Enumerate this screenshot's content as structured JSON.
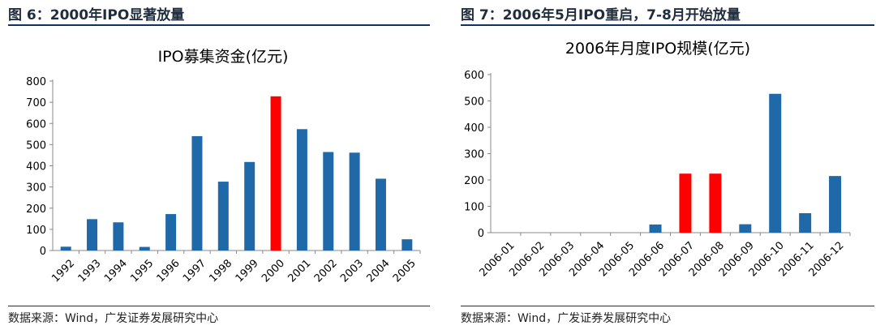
{
  "chart_data": [
    {
      "type": "bar",
      "figure_title": "图 6：2000年IPO显著放量",
      "title": "IPO募集资金(亿元)",
      "xlabel": "",
      "ylabel": "",
      "categories": [
        "1992",
        "1993",
        "1994",
        "1995",
        "1996",
        "1997",
        "1998",
        "1999",
        "2000",
        "2001",
        "2002",
        "2003",
        "2004",
        "2005"
      ],
      "values": [
        18,
        148,
        133,
        17,
        172,
        540,
        325,
        418,
        728,
        573,
        465,
        462,
        339,
        53
      ],
      "highlight": [
        "2000"
      ],
      "ylim": [
        0,
        800
      ],
      "yticks": [
        0,
        100,
        200,
        300,
        400,
        500,
        600,
        700,
        800
      ],
      "grid": false,
      "source": "数据来源：Wind，广发证券发展研究中心",
      "colors": {
        "bar": "#1f69a9",
        "highlight": "#ff0000",
        "title_rule": "#0f3263"
      }
    },
    {
      "type": "bar",
      "figure_title": "图 7：2006年5月IPO重启，7-8月开始放量",
      "title": "2006年月度IPO规模(亿元)",
      "xlabel": "",
      "ylabel": "",
      "categories": [
        "2006-01",
        "2006-02",
        "2006-03",
        "2006-04",
        "2006-05",
        "2006-06",
        "2006-07",
        "2006-08",
        "2006-09",
        "2006-10",
        "2006-11",
        "2006-12"
      ],
      "values": [
        0,
        0,
        0,
        0,
        0,
        31,
        224,
        224,
        32,
        527,
        74,
        215
      ],
      "highlight": [
        "2006-07",
        "2006-08"
      ],
      "ylim": [
        0,
        600
      ],
      "yticks": [
        0,
        100,
        200,
        300,
        400,
        500,
        600
      ],
      "grid": false,
      "source": "数据来源：Wind，广发证券发展研究中心",
      "colors": {
        "bar": "#1f69a9",
        "highlight": "#ff0000",
        "title_rule": "#0f3263"
      }
    }
  ]
}
